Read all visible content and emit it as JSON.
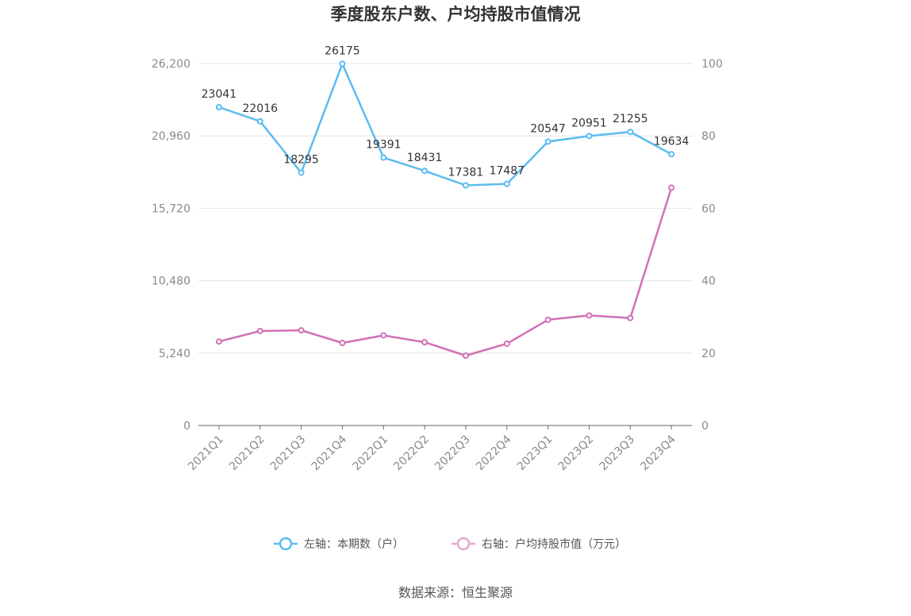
{
  "chart_data": {
    "type": "line",
    "title": "季度股东户数、户均持股市值情况",
    "categories": [
      "2021Q1",
      "2021Q2",
      "2021Q3",
      "2021Q4",
      "2022Q1",
      "2022Q2",
      "2022Q3",
      "2022Q4",
      "2023Q1",
      "2023Q2",
      "2023Q3",
      "2023Q4"
    ],
    "left_axis": {
      "min": 0,
      "max": 26200,
      "ticks": [
        0,
        5240,
        10480,
        15720,
        20960,
        26200
      ],
      "tick_labels": [
        "0",
        "5,240",
        "10,480",
        "15,720",
        "20,960",
        "26,200"
      ]
    },
    "right_axis": {
      "min": 0,
      "max": 100,
      "ticks": [
        0,
        20,
        40,
        60,
        80,
        100
      ],
      "tick_labels": [
        "0",
        "20",
        "40",
        "60",
        "80",
        "100"
      ]
    },
    "grid": true,
    "legend_position": "bottom",
    "series": [
      {
        "name": "左轴：本期数（户）",
        "axis": "left",
        "color": "#5bbcf0",
        "values": [
          23041,
          22016,
          18295,
          26175,
          19391,
          18431,
          17381,
          17487,
          20547,
          20951,
          21255,
          19634
        ],
        "data_labels": [
          "23041",
          "22016",
          "18295",
          "26175",
          "19391",
          "18431",
          "17381",
          "17487",
          "20547",
          "20951",
          "21255",
          "19634"
        ]
      },
      {
        "name": "右轴：户均持股市值（万元）",
        "axis": "right",
        "color": "#d270b4",
        "values": [
          23.2,
          26.1,
          26.3,
          22.8,
          24.9,
          23.0,
          19.3,
          22.6,
          29.2,
          30.4,
          29.7,
          65.7
        ]
      }
    ]
  },
  "source": "数据来源：恒生聚源"
}
